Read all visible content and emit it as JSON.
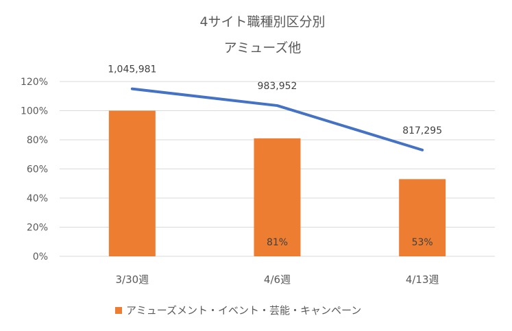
{
  "chart_data": {
    "type": "bar",
    "title": "4サイト職種別区分別",
    "subtitle": "アミューズ他",
    "categories": [
      "3/30週",
      "4/6週",
      "4/13週"
    ],
    "y_axis": {
      "ylim": [
        0,
        1.2
      ],
      "ticks": [
        "0%",
        "20%",
        "40%",
        "60%",
        "80%",
        "100%",
        "120%"
      ],
      "tick_values": [
        0,
        0.2,
        0.4,
        0.6,
        0.8,
        1.0,
        1.2
      ]
    },
    "grid": true,
    "legend_position": "bottom",
    "series": [
      {
        "name": "アミューズメント・イベント・芸能・キャンペーン",
        "kind": "bar",
        "color": "#ED7D31",
        "values": [
          1.0,
          0.81,
          0.53
        ],
        "data_labels": [
          "",
          "81%",
          "53%"
        ]
      },
      {
        "kind": "line",
        "color": "#4472C4",
        "values": [
          1.15,
          1.035,
          0.73
        ],
        "data_labels": [
          "1,045,981",
          "983,952",
          "817,295"
        ]
      }
    ]
  }
}
